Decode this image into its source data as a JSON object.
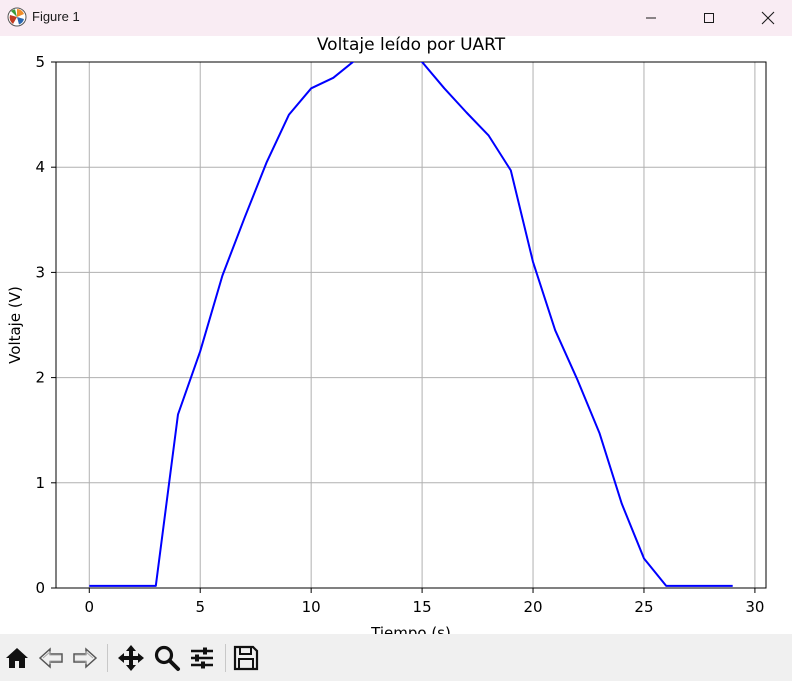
{
  "window": {
    "title": "Figure 1",
    "controls": [
      "minimize",
      "maximize",
      "close"
    ]
  },
  "toolbar": {
    "tools": [
      "home-icon",
      "back-icon",
      "forward-icon",
      "pan-icon",
      "zoom-icon",
      "configure-subplots-icon",
      "save-icon"
    ]
  },
  "colors": {
    "line": "#0000ff",
    "grid": "#b0b0b0",
    "titlebar": "#f9ecf3",
    "toolbar": "#f0f0f0"
  },
  "chart_data": {
    "type": "line",
    "title": "Voltaje leído por UART",
    "xlabel": "Tiempo (s)",
    "ylabel": "Voltaje (V)",
    "xlim": [
      -1.5,
      30.5
    ],
    "ylim": [
      0,
      5
    ],
    "xticks": [
      0,
      5,
      10,
      15,
      20,
      25,
      30
    ],
    "yticks": [
      0,
      1,
      2,
      3,
      4,
      5
    ],
    "grid": true,
    "series": [
      {
        "x": [
          0,
          1,
          2,
          3,
          4,
          5,
          6,
          7,
          8,
          9,
          10,
          11,
          12,
          13,
          14,
          15,
          16,
          17,
          18,
          19,
          20,
          21,
          22,
          23,
          24,
          25,
          26,
          27,
          28,
          29
        ],
        "y": [
          0.02,
          0.02,
          0.02,
          0.02,
          1.65,
          2.25,
          2.97,
          3.52,
          4.05,
          4.5,
          4.75,
          4.85,
          5.02,
          5.1,
          5.1,
          5.0,
          4.75,
          4.52,
          4.3,
          3.97,
          3.1,
          2.45,
          1.98,
          1.47,
          0.8,
          0.28,
          0.02,
          0.02,
          0.02,
          0.02
        ]
      }
    ]
  }
}
